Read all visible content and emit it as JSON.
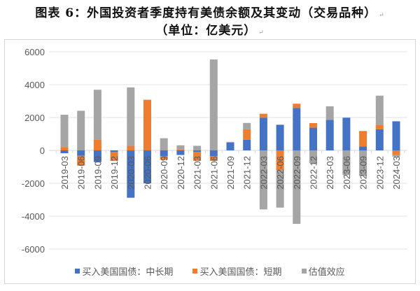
{
  "title": {
    "line1": "图表 6：外国投资者季度持有美债余额及其变动（交易品种）",
    "line2": "（单位：亿美元）",
    "para_mark": "↵"
  },
  "legend": {
    "items": [
      {
        "label": "买入美国国债：中长期",
        "color": "#4472C4"
      },
      {
        "label": "买入美国国债：短期",
        "color": "#ED7D31"
      },
      {
        "label": "估值效应",
        "color": "#A5A5A5"
      }
    ]
  },
  "chart_data": {
    "type": "bar",
    "stacked": true,
    "title": "外国投资者季度持有美债余额及其变动（交易品种）",
    "subtitle": "单位：亿美元",
    "xlabel": "",
    "ylabel": "",
    "ylim": [
      -6000,
      6000
    ],
    "yticks": [
      6000,
      4000,
      2000,
      0,
      -2000,
      -4000,
      -6000
    ],
    "grid": true,
    "legend_position": "bottom",
    "categories": [
      "2019-03",
      "2019-06",
      "2019-09",
      "2019-12",
      "2020-03",
      "2020-06",
      "2020-09",
      "2020-12",
      "2021-03",
      "2021-06",
      "2021-09",
      "2021-12",
      "2022-03",
      "2022-06",
      "2022-09",
      "2022-12",
      "2023-03",
      "2023-06",
      "2023-09",
      "2023-12",
      "2024-03"
    ],
    "series": [
      {
        "name": "买入美国国债：中长期",
        "color": "#4472C4",
        "values": [
          -170,
          -330,
          -710,
          -100,
          -2880,
          -2000,
          -350,
          -280,
          -100,
          -350,
          470,
          640,
          1990,
          1560,
          2580,
          1380,
          1850,
          1990,
          240,
          1280,
          1770
        ]
      },
      {
        "name": "买入美国国债：短期",
        "color": "#ED7D31",
        "values": [
          200,
          -600,
          640,
          -540,
          280,
          3080,
          -220,
          40,
          -540,
          -290,
          0,
          640,
          240,
          -1200,
          260,
          280,
          0,
          0,
          940,
          280,
          -280
        ]
      },
      {
        "name": "估值效应",
        "color": "#A5A5A5",
        "values": [
          1970,
          2410,
          3050,
          0,
          3550,
          0,
          740,
          270,
          280,
          5530,
          50,
          390,
          -3590,
          -2280,
          -4470,
          -780,
          830,
          -1500,
          -1560,
          1770,
          -100
        ]
      }
    ]
  }
}
